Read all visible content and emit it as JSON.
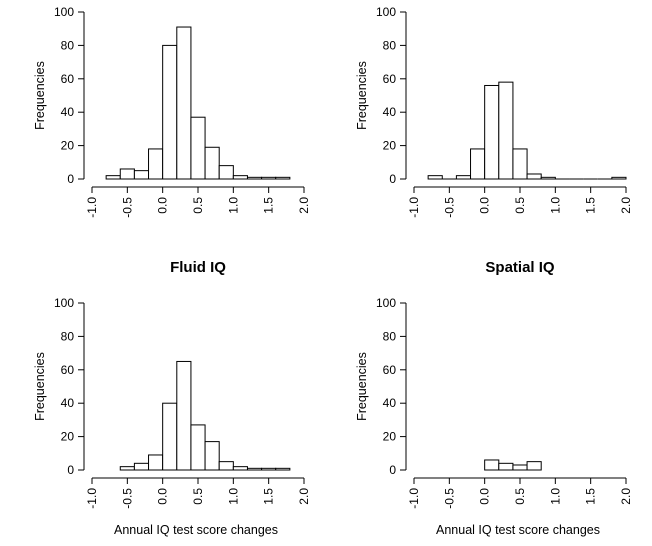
{
  "chart_data": [
    {
      "type": "bar",
      "title": "",
      "ylabel": "Frequencies",
      "xlabel": "",
      "xlim": [
        -1.0,
        2.0
      ],
      "ylim": [
        0,
        100
      ],
      "xticks": [
        "-1.0",
        "-0.5",
        "0.0",
        "0.5",
        "1.0",
        "1.5",
        "2.0"
      ],
      "yticks": [
        "0",
        "20",
        "40",
        "60",
        "80",
        "100"
      ],
      "bin_width": 0.2,
      "bin_starts": [
        -0.8,
        -0.6,
        -0.4,
        -0.2,
        0.0,
        0.2,
        0.4,
        0.6,
        0.8,
        1.0,
        1.2,
        1.4,
        1.6
      ],
      "values": [
        2,
        6,
        5,
        18,
        80,
        91,
        37,
        19,
        8,
        2,
        1,
        1,
        1
      ]
    },
    {
      "type": "bar",
      "title": "",
      "ylabel": "Frequencies",
      "xlabel": "",
      "xlim": [
        -1.0,
        2.0
      ],
      "ylim": [
        0,
        100
      ],
      "xticks": [
        "-1.0",
        "-0.5",
        "0.0",
        "0.5",
        "1.0",
        "1.5",
        "2.0"
      ],
      "yticks": [
        "0",
        "20",
        "40",
        "60",
        "80",
        "100"
      ],
      "bin_width": 0.2,
      "bin_starts": [
        -0.8,
        -0.6,
        -0.4,
        -0.2,
        0.0,
        0.2,
        0.4,
        0.6,
        0.8,
        1.0,
        1.2,
        1.4,
        1.6,
        1.8
      ],
      "values": [
        2,
        0,
        2,
        18,
        56,
        58,
        18,
        3,
        1,
        0,
        0,
        0,
        0,
        1
      ]
    },
    {
      "type": "bar",
      "title": "Fluid IQ",
      "ylabel": "Frequencies",
      "xlabel": "Annual IQ test score changes",
      "xlim": [
        -1.0,
        2.0
      ],
      "ylim": [
        0,
        100
      ],
      "xticks": [
        "-1.0",
        "-0.5",
        "0.0",
        "0.5",
        "1.0",
        "1.5",
        "2.0"
      ],
      "yticks": [
        "0",
        "20",
        "40",
        "60",
        "80",
        "100"
      ],
      "bin_width": 0.2,
      "bin_starts": [
        -0.6,
        -0.4,
        -0.2,
        0.0,
        0.2,
        0.4,
        0.6,
        0.8,
        1.0,
        1.2,
        1.4,
        1.6
      ],
      "values": [
        2,
        4,
        9,
        40,
        65,
        27,
        17,
        5,
        2,
        1,
        1,
        1
      ]
    },
    {
      "type": "bar",
      "title": "Spatial IQ",
      "ylabel": "Frequencies",
      "xlabel": "Annual IQ test score changes",
      "xlim": [
        -1.0,
        2.0
      ],
      "ylim": [
        0,
        100
      ],
      "xticks": [
        "-1.0",
        "-0.5",
        "0.0",
        "0.5",
        "1.0",
        "1.5",
        "2.0"
      ],
      "yticks": [
        "0",
        "20",
        "40",
        "60",
        "80",
        "100"
      ],
      "bin_width": 0.2,
      "bin_starts": [
        0.0,
        0.2,
        0.4,
        0.6
      ],
      "values": [
        6,
        4,
        3,
        5
      ]
    }
  ]
}
